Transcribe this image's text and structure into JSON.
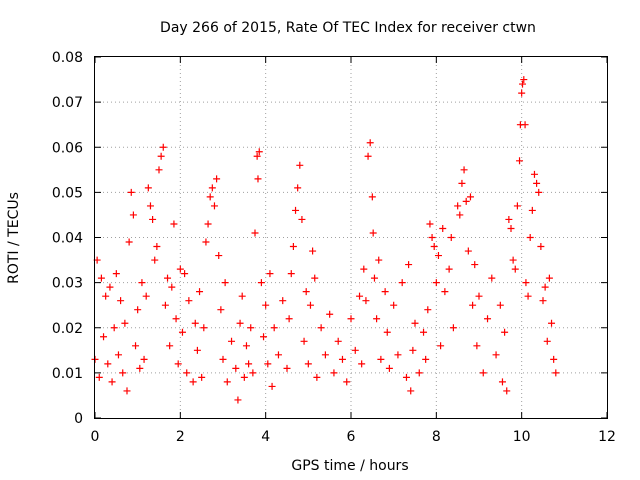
{
  "chart_data": {
    "type": "scatter",
    "title": "Day 266 of 2015, Rate Of TEC Index for receiver ctwn",
    "xlabel": "GPS time / hours",
    "ylabel": "ROTI / TECUs",
    "xlim": [
      0,
      12
    ],
    "ylim": [
      0,
      0.08
    ],
    "x_ticks": [
      0,
      2,
      4,
      6,
      8,
      10,
      12
    ],
    "y_ticks": [
      0,
      0.01,
      0.02,
      0.03,
      0.04,
      0.05,
      0.06,
      0.07,
      0.08
    ],
    "x_tick_labels": [
      "0",
      "2",
      "4",
      "6",
      "8",
      "10",
      "12"
    ],
    "y_tick_labels": [
      "0",
      "0.01",
      "0.02",
      "0.03",
      "0.04",
      "0.05",
      "0.06",
      "0.07",
      "0.08"
    ],
    "grid": true,
    "marker": "+",
    "series_color": "#ff0000",
    "series": [
      {
        "name": "ROTI",
        "points": [
          [
            0.0,
            0.013
          ],
          [
            0.05,
            0.035
          ],
          [
            0.1,
            0.009
          ],
          [
            0.15,
            0.031
          ],
          [
            0.2,
            0.018
          ],
          [
            0.25,
            0.027
          ],
          [
            0.3,
            0.012
          ],
          [
            0.35,
            0.029
          ],
          [
            0.4,
            0.008
          ],
          [
            0.45,
            0.02
          ],
          [
            0.5,
            0.032
          ],
          [
            0.55,
            0.014
          ],
          [
            0.6,
            0.026
          ],
          [
            0.65,
            0.01
          ],
          [
            0.7,
            0.021
          ],
          [
            0.75,
            0.006
          ],
          [
            0.8,
            0.039
          ],
          [
            0.85,
            0.05
          ],
          [
            0.9,
            0.045
          ],
          [
            0.95,
            0.016
          ],
          [
            1.0,
            0.024
          ],
          [
            1.05,
            0.011
          ],
          [
            1.1,
            0.03
          ],
          [
            1.15,
            0.013
          ],
          [
            1.2,
            0.027
          ],
          [
            1.25,
            0.051
          ],
          [
            1.3,
            0.047
          ],
          [
            1.35,
            0.044
          ],
          [
            1.4,
            0.035
          ],
          [
            1.45,
            0.038
          ],
          [
            1.5,
            0.055
          ],
          [
            1.55,
            0.058
          ],
          [
            1.6,
            0.06
          ],
          [
            1.65,
            0.025
          ],
          [
            1.7,
            0.031
          ],
          [
            1.75,
            0.016
          ],
          [
            1.8,
            0.029
          ],
          [
            1.85,
            0.043
          ],
          [
            1.9,
            0.022
          ],
          [
            1.95,
            0.012
          ],
          [
            2.0,
            0.033
          ],
          [
            2.05,
            0.019
          ],
          [
            2.1,
            0.032
          ],
          [
            2.15,
            0.01
          ],
          [
            2.2,
            0.026
          ],
          [
            2.3,
            0.008
          ],
          [
            2.35,
            0.021
          ],
          [
            2.4,
            0.015
          ],
          [
            2.45,
            0.028
          ],
          [
            2.5,
            0.009
          ],
          [
            2.55,
            0.02
          ],
          [
            2.6,
            0.039
          ],
          [
            2.65,
            0.043
          ],
          [
            2.7,
            0.049
          ],
          [
            2.75,
            0.051
          ],
          [
            2.8,
            0.047
          ],
          [
            2.85,
            0.053
          ],
          [
            2.9,
            0.036
          ],
          [
            2.95,
            0.024
          ],
          [
            3.0,
            0.013
          ],
          [
            3.05,
            0.03
          ],
          [
            3.1,
            0.008
          ],
          [
            3.2,
            0.017
          ],
          [
            3.3,
            0.011
          ],
          [
            3.35,
            0.004
          ],
          [
            3.4,
            0.021
          ],
          [
            3.45,
            0.027
          ],
          [
            3.5,
            0.009
          ],
          [
            3.55,
            0.016
          ],
          [
            3.6,
            0.012
          ],
          [
            3.65,
            0.02
          ],
          [
            3.7,
            0.01
          ],
          [
            3.75,
            0.041
          ],
          [
            3.8,
            0.058
          ],
          [
            3.82,
            0.053
          ],
          [
            3.85,
            0.059
          ],
          [
            3.9,
            0.03
          ],
          [
            3.95,
            0.018
          ],
          [
            4.0,
            0.025
          ],
          [
            4.05,
            0.012
          ],
          [
            4.1,
            0.032
          ],
          [
            4.15,
            0.007
          ],
          [
            4.2,
            0.02
          ],
          [
            4.3,
            0.014
          ],
          [
            4.4,
            0.026
          ],
          [
            4.5,
            0.011
          ],
          [
            4.55,
            0.022
          ],
          [
            4.6,
            0.032
          ],
          [
            4.65,
            0.038
          ],
          [
            4.7,
            0.046
          ],
          [
            4.75,
            0.051
          ],
          [
            4.8,
            0.056
          ],
          [
            4.85,
            0.044
          ],
          [
            4.9,
            0.017
          ],
          [
            4.95,
            0.028
          ],
          [
            5.0,
            0.012
          ],
          [
            5.05,
            0.025
          ],
          [
            5.1,
            0.037
          ],
          [
            5.15,
            0.031
          ],
          [
            5.2,
            0.009
          ],
          [
            5.3,
            0.02
          ],
          [
            5.4,
            0.014
          ],
          [
            5.5,
            0.023
          ],
          [
            5.6,
            0.01
          ],
          [
            5.7,
            0.017
          ],
          [
            5.8,
            0.013
          ],
          [
            5.9,
            0.008
          ],
          [
            6.0,
            0.022
          ],
          [
            6.1,
            0.015
          ],
          [
            6.2,
            0.027
          ],
          [
            6.25,
            0.012
          ],
          [
            6.3,
            0.033
          ],
          [
            6.35,
            0.026
          ],
          [
            6.4,
            0.058
          ],
          [
            6.45,
            0.061
          ],
          [
            6.5,
            0.049
          ],
          [
            6.52,
            0.041
          ],
          [
            6.55,
            0.031
          ],
          [
            6.6,
            0.022
          ],
          [
            6.65,
            0.035
          ],
          [
            6.7,
            0.013
          ],
          [
            6.8,
            0.028
          ],
          [
            6.85,
            0.019
          ],
          [
            6.9,
            0.011
          ],
          [
            7.0,
            0.025
          ],
          [
            7.1,
            0.014
          ],
          [
            7.2,
            0.03
          ],
          [
            7.3,
            0.009
          ],
          [
            7.35,
            0.034
          ],
          [
            7.4,
            0.006
          ],
          [
            7.45,
            0.015
          ],
          [
            7.5,
            0.021
          ],
          [
            7.6,
            0.01
          ],
          [
            7.7,
            0.019
          ],
          [
            7.75,
            0.013
          ],
          [
            7.8,
            0.024
          ],
          [
            7.85,
            0.043
          ],
          [
            7.9,
            0.04
          ],
          [
            7.95,
            0.038
          ],
          [
            8.0,
            0.03
          ],
          [
            8.05,
            0.036
          ],
          [
            8.1,
            0.016
          ],
          [
            8.15,
            0.042
          ],
          [
            8.2,
            0.028
          ],
          [
            8.3,
            0.033
          ],
          [
            8.35,
            0.04
          ],
          [
            8.4,
            0.02
          ],
          [
            8.5,
            0.047
          ],
          [
            8.55,
            0.045
          ],
          [
            8.6,
            0.052
          ],
          [
            8.65,
            0.055
          ],
          [
            8.7,
            0.048
          ],
          [
            8.75,
            0.037
          ],
          [
            8.8,
            0.049
          ],
          [
            8.85,
            0.025
          ],
          [
            8.9,
            0.034
          ],
          [
            8.95,
            0.016
          ],
          [
            9.0,
            0.027
          ],
          [
            9.1,
            0.01
          ],
          [
            9.2,
            0.022
          ],
          [
            9.3,
            0.031
          ],
          [
            9.4,
            0.014
          ],
          [
            9.5,
            0.025
          ],
          [
            9.55,
            0.008
          ],
          [
            9.6,
            0.019
          ],
          [
            9.65,
            0.006
          ],
          [
            9.7,
            0.044
          ],
          [
            9.75,
            0.042
          ],
          [
            9.8,
            0.035
          ],
          [
            9.85,
            0.033
          ],
          [
            9.9,
            0.047
          ],
          [
            9.95,
            0.057
          ],
          [
            9.97,
            0.065
          ],
          [
            10.0,
            0.072
          ],
          [
            10.02,
            0.074
          ],
          [
            10.05,
            0.075
          ],
          [
            10.08,
            0.065
          ],
          [
            10.1,
            0.03
          ],
          [
            10.15,
            0.027
          ],
          [
            10.2,
            0.04
          ],
          [
            10.25,
            0.046
          ],
          [
            10.3,
            0.054
          ],
          [
            10.35,
            0.052
          ],
          [
            10.4,
            0.05
          ],
          [
            10.45,
            0.038
          ],
          [
            10.5,
            0.026
          ],
          [
            10.55,
            0.029
          ],
          [
            10.6,
            0.017
          ],
          [
            10.65,
            0.031
          ],
          [
            10.7,
            0.021
          ],
          [
            10.75,
            0.013
          ],
          [
            10.8,
            0.01
          ]
        ]
      }
    ]
  }
}
